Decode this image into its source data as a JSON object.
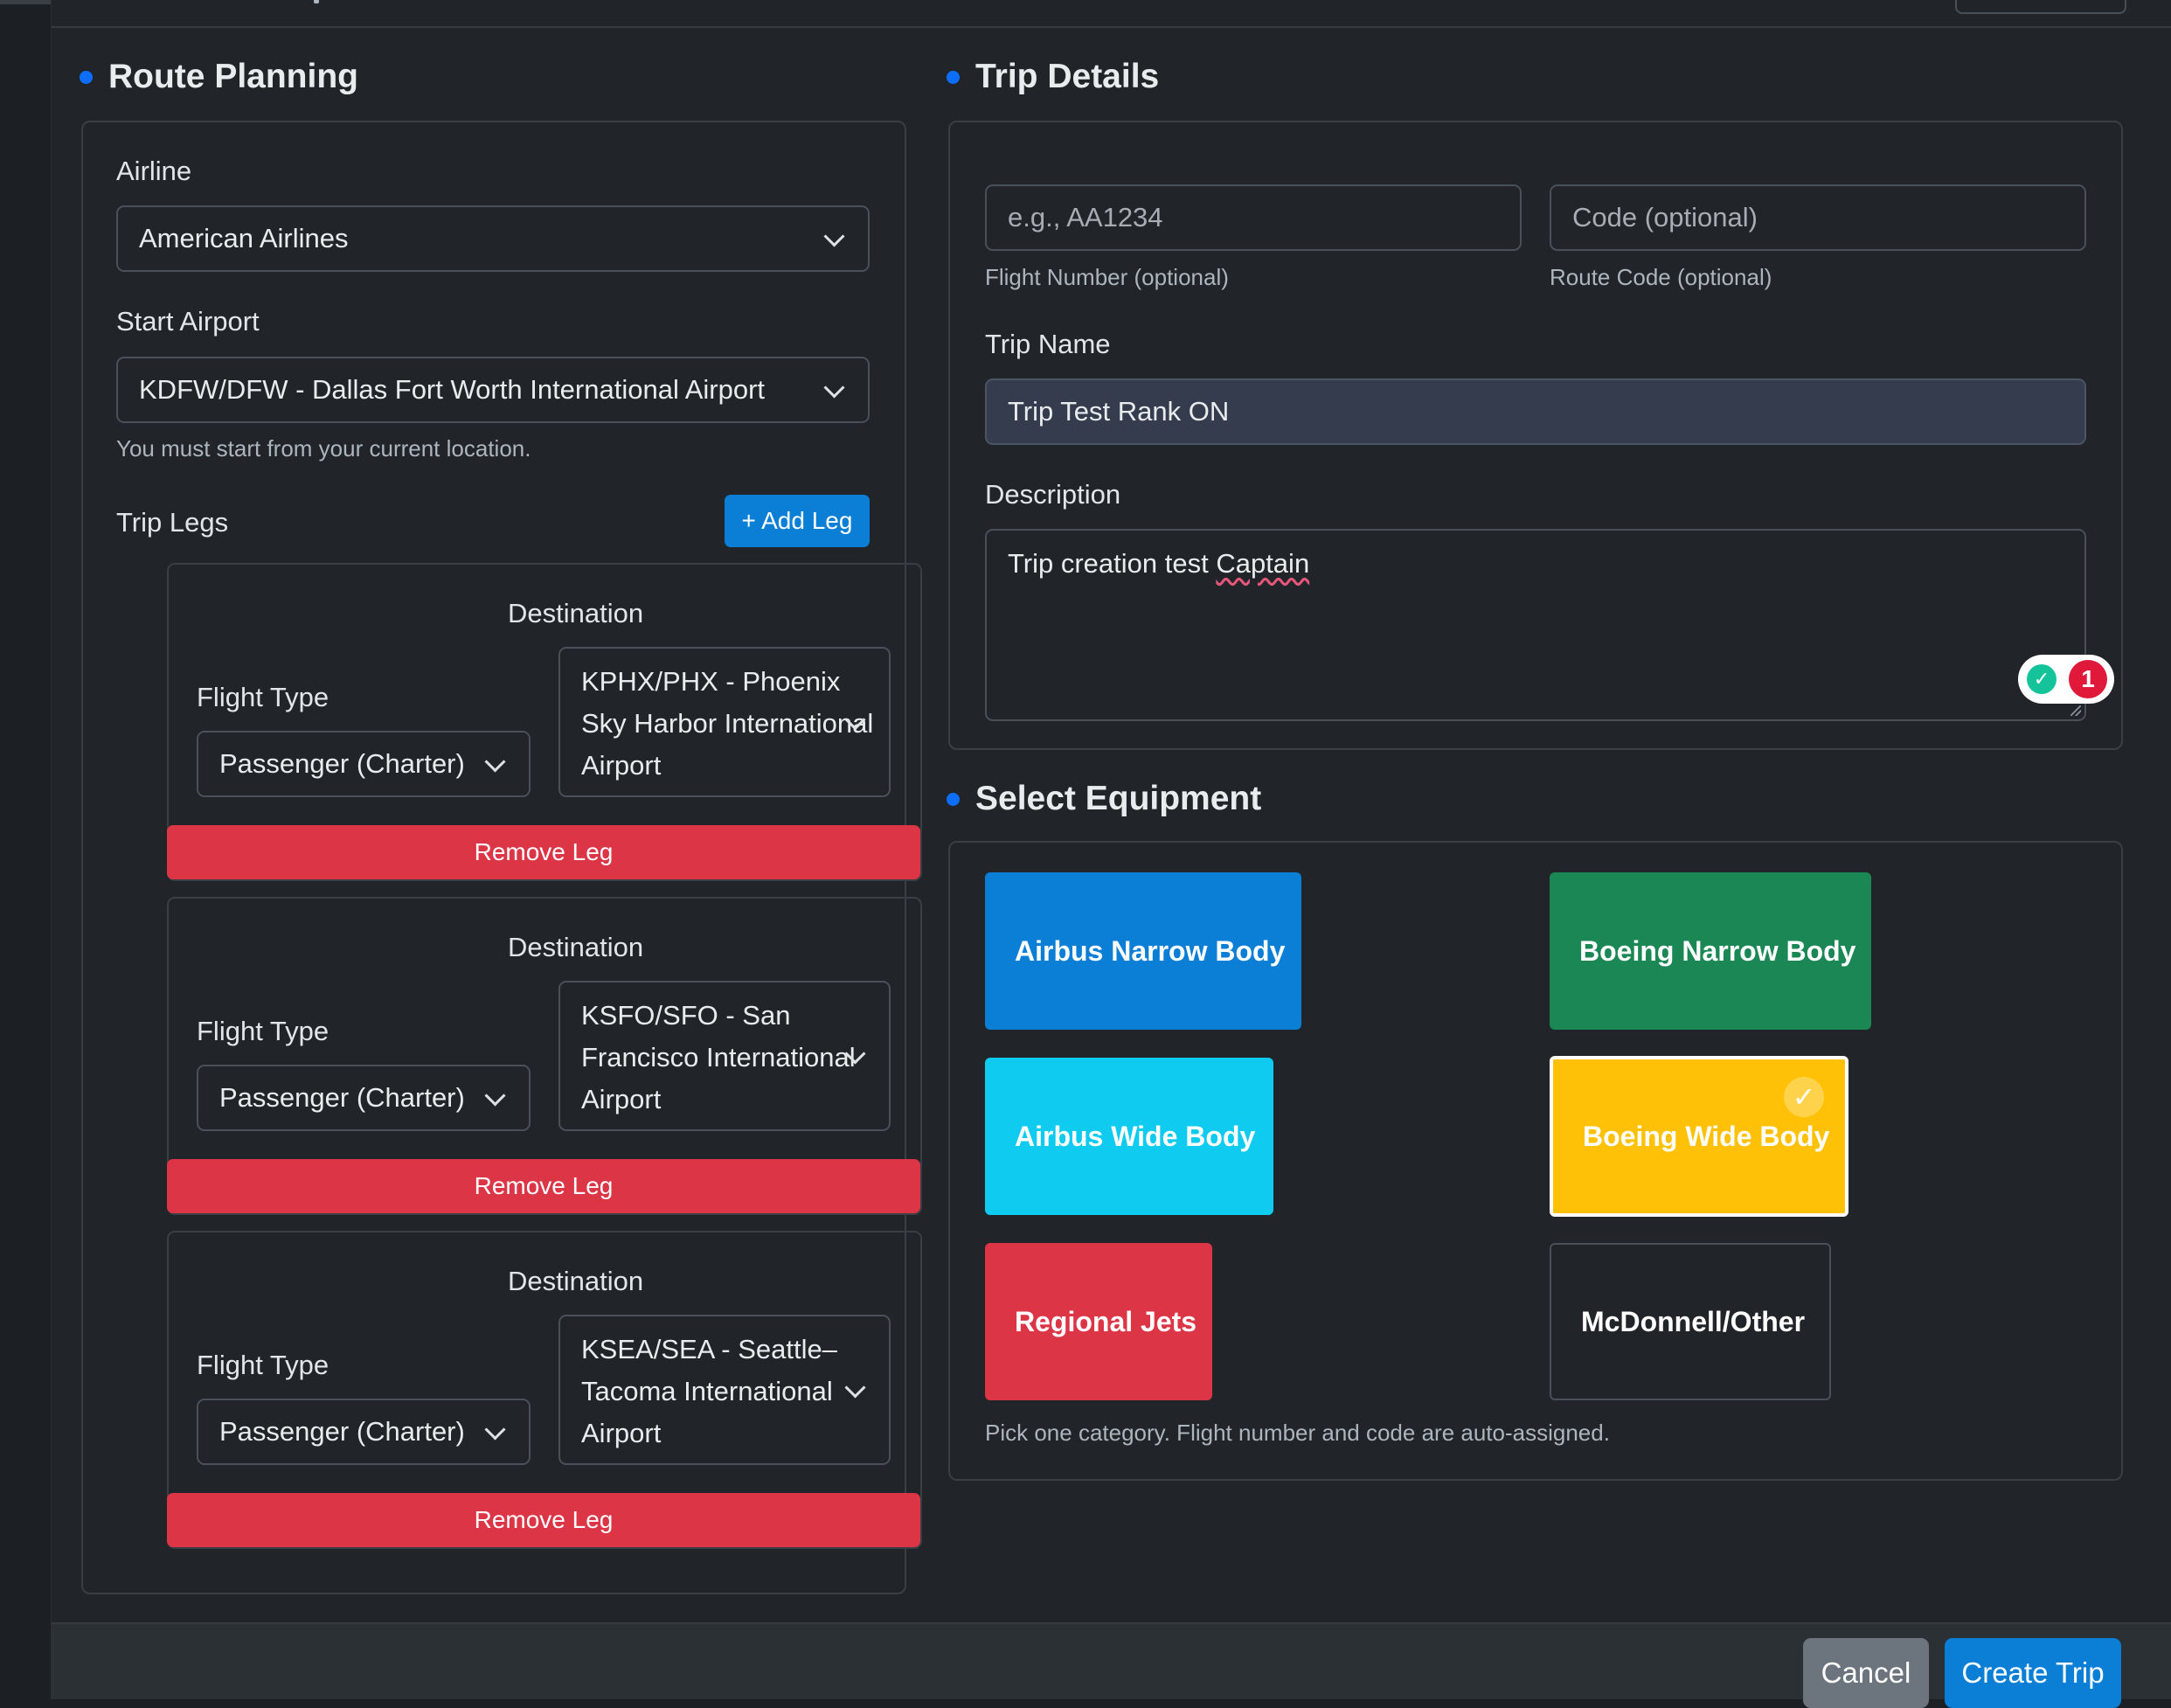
{
  "route_planning": {
    "title": "Route Planning",
    "airline_label": "Airline",
    "airline_value": "American Airlines",
    "start_airport_label": "Start Airport",
    "start_airport_value": "KDFW/DFW - Dallas Fort Worth International Airport",
    "start_airport_help": "You must start from your current location.",
    "trip_legs_label": "Trip Legs",
    "add_leg_label": "+ Add Leg",
    "legs": [
      {
        "flight_type_label": "Flight Type",
        "flight_type_value": "Passenger (Charter)",
        "destination_label": "Destination",
        "destination_value": "KPHX/PHX - Phoenix Sky Harbor International Airport",
        "remove_label": "Remove Leg"
      },
      {
        "flight_type_label": "Flight Type",
        "flight_type_value": "Passenger (Charter)",
        "destination_label": "Destination",
        "destination_value": "KSFO/SFO - San Francisco International Airport",
        "remove_label": "Remove Leg"
      },
      {
        "flight_type_label": "Flight Type",
        "flight_type_value": "Passenger (Charter)",
        "destination_label": "Destination",
        "destination_value": "KSEA/SEA - Seattle–Tacoma International Airport",
        "remove_label": "Remove Leg"
      }
    ]
  },
  "trip_details": {
    "title": "Trip Details",
    "flight_number_placeholder": "e.g., AA1234",
    "flight_number_help": "Flight Number (optional)",
    "route_code_placeholder": "Code (optional)",
    "route_code_help": "Route Code (optional)",
    "trip_name_label": "Trip Name",
    "trip_name_value": "Trip Test Rank ON",
    "description_label": "Description",
    "description_value_start": "Trip creation test ",
    "description_value_flagged": "Captain",
    "grammar_issue_count": "1"
  },
  "equipment": {
    "title": "Select Equipment",
    "options": [
      {
        "label": "Airbus Narrow Body",
        "color": "#0b7fd6",
        "selected": false
      },
      {
        "label": "Boeing Narrow Body",
        "color": "#1b8754",
        "selected": false
      },
      {
        "label": "Airbus Wide Body",
        "color": "#0ecbef",
        "selected": false
      },
      {
        "label": "Boeing Wide Body",
        "color": "#ffc107",
        "selected": true
      },
      {
        "label": "Regional Jets",
        "color": "#dc3545",
        "selected": false
      },
      {
        "label": "McDonnell/Other",
        "color": "#212529",
        "selected": false
      }
    ],
    "help": "Pick one category. Flight number and code are auto-assigned."
  },
  "footer": {
    "cancel_label": "Cancel",
    "create_label": "Create Trip"
  }
}
